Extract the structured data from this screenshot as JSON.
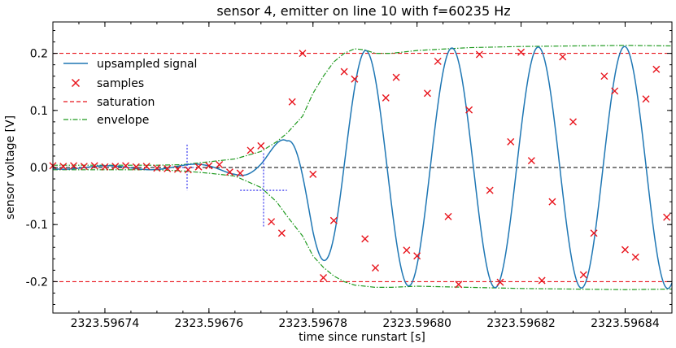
{
  "chart_data": {
    "type": "line",
    "title": "sensor 4, emitter on line 10 with f=60235 Hz",
    "xlabel": "time since runstart [s]",
    "ylabel": "sensor voltage [V]",
    "xlim": [
      2323.59673,
      2323.596849
    ],
    "ylim": [
      -0.255,
      0.255
    ],
    "x_ticks": [
      2323.59674,
      2323.59676,
      2323.59678,
      2323.5968,
      2323.59682,
      2323.59684
    ],
    "x_tick_labels": [
      "2323.59674",
      "2323.59676",
      "2323.59678",
      "2323.59680",
      "2323.59682",
      "2323.59684"
    ],
    "y_ticks": [
      -0.2,
      -0.1,
      0.0,
      0.1,
      0.2
    ],
    "y_tick_labels": [
      "-0.2",
      "-0.1",
      "0.0",
      "0.1",
      "0.2"
    ],
    "grid": false,
    "legend_position": "upper-left",
    "colors": {
      "signal": "#1f77b4",
      "samples": "#e8141c",
      "saturation": "#e8141c",
      "envelope": "#1f9a1f",
      "zero_line": "#000000",
      "markers": "#2222ee"
    },
    "saturation_levels": [
      0.2,
      -0.2
    ],
    "zero_line": 0.0,
    "series": [
      {
        "name": "upsampled signal",
        "style": "solid",
        "carrier_period": 1.66e-05,
        "carrier_peak_time": 2323.5967735,
        "amplitude_points": {
          "x": [
            2323.59673,
            2323.59674,
            2323.59675,
            2323.596755,
            2323.59676,
            2323.596765,
            2323.59677,
            2323.596775,
            2323.59678,
            2323.596785,
            2323.59679,
            2323.5968,
            2323.59681,
            2323.59682,
            2323.59683,
            2323.59684,
            2323.596849
          ],
          "y": [
            0.003,
            0.003,
            0.004,
            0.005,
            0.007,
            0.012,
            0.024,
            0.055,
            0.145,
            0.19,
            0.205,
            0.208,
            0.21,
            0.211,
            0.211,
            0.212,
            0.212
          ]
        }
      },
      {
        "name": "samples",
        "style": "x-markers",
        "x": [
          2323.59673,
          2323.596732,
          2323.596734,
          2323.596736,
          2323.596738,
          2323.59674,
          2323.596742,
          2323.596744,
          2323.596746,
          2323.596748,
          2323.59675,
          2323.596752,
          2323.596754,
          2323.596756,
          2323.596758,
          2323.59676,
          2323.596762,
          2323.596764,
          2323.596766,
          2323.596768,
          2323.59677,
          2323.596772,
          2323.596774,
          2323.596776,
          2323.596778,
          2323.59678,
          2323.596782,
          2323.596784,
          2323.596786,
          2323.596788,
          2323.59679,
          2323.596792,
          2323.596794,
          2323.596796,
          2323.596798,
          2323.5968,
          2323.596802,
          2323.596804,
          2323.596806,
          2323.596808,
          2323.59681,
          2323.596812,
          2323.596814,
          2323.596816,
          2323.596818,
          2323.59682,
          2323.596822,
          2323.596824,
          2323.596826,
          2323.596828,
          2323.59683,
          2323.596832,
          2323.596834,
          2323.596836,
          2323.596838,
          2323.59684,
          2323.596842,
          2323.596844,
          2323.596846,
          2323.596848
        ],
        "y": [
          0.003,
          0.002,
          0.003,
          0.002,
          0.003,
          0.001,
          0.002,
          0.003,
          0.001,
          0.002,
          -0.001,
          -0.002,
          -0.003,
          -0.004,
          0.001,
          0.003,
          0.005,
          -0.008,
          -0.01,
          0.03,
          0.038,
          -0.095,
          -0.115,
          0.115,
          0.2,
          -0.012,
          -0.193,
          -0.093,
          0.168,
          0.155,
          -0.125,
          -0.176,
          0.122,
          0.158,
          -0.145,
          -0.155,
          0.13,
          0.186,
          -0.086,
          -0.205,
          0.101,
          0.198,
          -0.04,
          -0.201,
          0.045,
          0.202,
          0.012,
          -0.198,
          -0.06,
          0.194,
          0.08,
          -0.188,
          -0.115,
          0.16,
          0.134,
          -0.144,
          -0.157,
          0.12,
          0.172,
          -0.087
        ]
      },
      {
        "name": "saturation",
        "style": "dashed",
        "y": [
          0.2,
          -0.2
        ]
      },
      {
        "name": "envelope",
        "style": "dash-dot",
        "x": [
          2323.59673,
          2323.59674,
          2323.59675,
          2323.596755,
          2323.59676,
          2323.596765,
          2323.59677,
          2323.596773,
          2323.596775,
          2323.596778,
          2323.59678,
          2323.596782,
          2323.596784,
          2323.596786,
          2323.596788,
          2323.59679,
          2323.596792,
          2323.596795,
          2323.5968,
          2323.59681,
          2323.59682,
          2323.59683,
          2323.59684,
          2323.596849
        ],
        "upper": [
          0.004,
          0.004,
          0.004,
          0.005,
          0.01,
          0.015,
          0.028,
          0.045,
          0.06,
          0.09,
          0.13,
          0.16,
          0.185,
          0.2,
          0.208,
          0.206,
          0.2,
          0.2,
          0.205,
          0.21,
          0.212,
          0.213,
          0.214,
          0.213
        ],
        "lower": [
          -0.004,
          -0.004,
          -0.004,
          -0.006,
          -0.01,
          -0.015,
          -0.035,
          -0.06,
          -0.085,
          -0.12,
          -0.155,
          -0.175,
          -0.19,
          -0.2,
          -0.206,
          -0.208,
          -0.21,
          -0.21,
          -0.208,
          -0.21,
          -0.212,
          -0.213,
          -0.214,
          -0.213
        ]
      }
    ],
    "onset_markers": [
      {
        "x": 2323.5967558,
        "y": 0.0,
        "half_width": 1.6e-06,
        "half_height": 0.04
      },
      {
        "x": 2323.5967705,
        "y": -0.04,
        "half_width": 4.5e-06,
        "half_height": 0.065
      }
    ]
  }
}
